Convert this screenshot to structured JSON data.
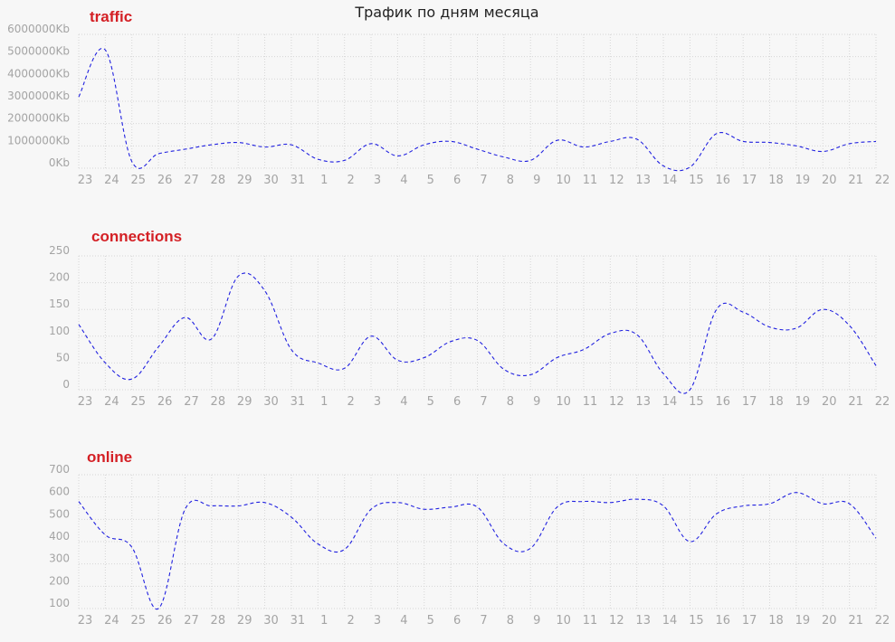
{
  "page_title": "Трафик по дням месяца",
  "chart_data": [
    {
      "type": "line",
      "title": "traffic",
      "x": [
        "23",
        "24",
        "25",
        "26",
        "27",
        "28",
        "29",
        "30",
        "31",
        "1",
        "2",
        "3",
        "4",
        "5",
        "6",
        "7",
        "8",
        "9",
        "10",
        "11",
        "12",
        "13",
        "14",
        "15",
        "16",
        "17",
        "18",
        "19",
        "20",
        "21",
        "22"
      ],
      "y_tick_labels": [
        "6000000Kb",
        "5000000Kb",
        "4000000Kb",
        "3000000Kb",
        "2000000Kb",
        "1000000Kb",
        "0Kb"
      ],
      "ylim": [
        0,
        6000000
      ],
      "grid": true,
      "series": [
        {
          "values": [
            3200000,
            5300000,
            300000,
            650000,
            850000,
            1050000,
            1150000,
            950000,
            1050000,
            400000,
            350000,
            1100000,
            550000,
            1050000,
            1200000,
            850000,
            500000,
            350000,
            1250000,
            950000,
            1200000,
            1300000,
            100000,
            50000,
            1550000,
            1200000,
            1150000,
            1000000,
            750000,
            1100000,
            1200000
          ]
        }
      ],
      "color": "#2121e0"
    },
    {
      "type": "line",
      "title": "connections",
      "x": [
        "23",
        "24",
        "25",
        "26",
        "27",
        "28",
        "29",
        "30",
        "31",
        "1",
        "2",
        "3",
        "4",
        "5",
        "6",
        "7",
        "8",
        "9",
        "10",
        "11",
        "12",
        "13",
        "14",
        "15",
        "16",
        "17",
        "18",
        "19",
        "20",
        "21",
        "22"
      ],
      "y_tick_labels": [
        "250",
        "200",
        "150",
        "100",
        "50",
        "0"
      ],
      "ylim": [
        0,
        250
      ],
      "grid": true,
      "series": [
        {
          "values": [
            122,
            50,
            20,
            80,
            135,
            95,
            212,
            185,
            75,
            50,
            40,
            100,
            55,
            60,
            90,
            92,
            38,
            28,
            60,
            75,
            105,
            103,
            30,
            0,
            150,
            145,
            117,
            115,
            150,
            120,
            45
          ]
        }
      ],
      "color": "#2121e0"
    },
    {
      "type": "line",
      "title": "online",
      "x": [
        "23",
        "24",
        "25",
        "26",
        "27",
        "28",
        "29",
        "30",
        "31",
        "1",
        "2",
        "3",
        "4",
        "5",
        "6",
        "7",
        "8",
        "9",
        "10",
        "11",
        "12",
        "13",
        "14",
        "15",
        "16",
        "17",
        "18",
        "19",
        "20",
        "21",
        "22"
      ],
      "y_tick_labels": [
        "700",
        "600",
        "500",
        "400",
        "300",
        "200",
        "100"
      ],
      "ylim": [
        100,
        700
      ],
      "grid": true,
      "series": [
        {
          "values": [
            580,
            430,
            375,
            100,
            545,
            560,
            560,
            575,
            510,
            390,
            365,
            545,
            575,
            545,
            555,
            555,
            390,
            370,
            555,
            580,
            575,
            590,
            560,
            400,
            525,
            560,
            570,
            620,
            570,
            570,
            415
          ]
        }
      ],
      "color": "#2121e0"
    }
  ]
}
